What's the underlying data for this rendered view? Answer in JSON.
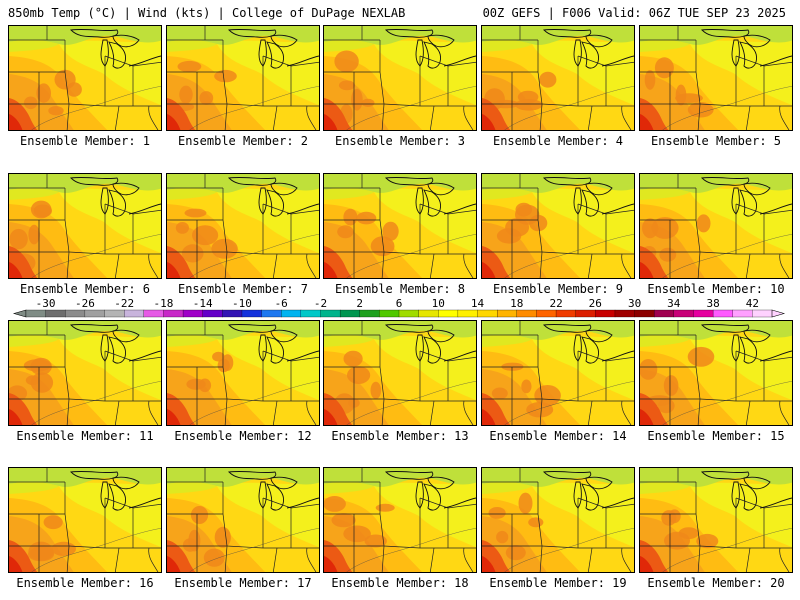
{
  "header": {
    "title_left": "850mb Temp (°C) | Wind (kts) | College of DuPage NEXLAB",
    "title_right": "00Z GEFS | F006 Valid: 06Z TUE SEP 23 2025"
  },
  "panels": [
    {
      "label": "Ensemble Member: 1"
    },
    {
      "label": "Ensemble Member: 2"
    },
    {
      "label": "Ensemble Member: 3"
    },
    {
      "label": "Ensemble Member: 4"
    },
    {
      "label": "Ensemble Member: 5"
    },
    {
      "label": "Ensemble Member: 6"
    },
    {
      "label": "Ensemble Member: 7"
    },
    {
      "label": "Ensemble Member: 8"
    },
    {
      "label": "Ensemble Member: 9"
    },
    {
      "label": "Ensemble Member: 10"
    },
    {
      "label": "Ensemble Member: 11"
    },
    {
      "label": "Ensemble Member: 12"
    },
    {
      "label": "Ensemble Member: 13"
    },
    {
      "label": "Ensemble Member: 14"
    },
    {
      "label": "Ensemble Member: 15"
    },
    {
      "label": "Ensemble Member: 16"
    },
    {
      "label": "Ensemble Member: 17"
    },
    {
      "label": "Ensemble Member: 18"
    },
    {
      "label": "Ensemble Member: 19"
    },
    {
      "label": "Ensemble Member: 20"
    }
  ],
  "colorbar": {
    "tick_labels": [
      "-30",
      "-26",
      "-22",
      "-18",
      "-14",
      "-10",
      "-6",
      "-2",
      "2",
      "6",
      "10",
      "14",
      "18",
      "22",
      "26",
      "30",
      "34",
      "38",
      "42"
    ],
    "colors": [
      "#7f8c85",
      "#6e6e6e",
      "#8c8c8c",
      "#a0a0a0",
      "#b4b4b4",
      "#c8b4dc",
      "#e65ae6",
      "#c828c8",
      "#a000c8",
      "#6400c8",
      "#3214b4",
      "#1432dc",
      "#1e78f0",
      "#00b4f0",
      "#00c8c8",
      "#00b48c",
      "#009650",
      "#1ea01e",
      "#50c800",
      "#a0dc00",
      "#e6e600",
      "#ffff00",
      "#fff000",
      "#ffd700",
      "#ffb400",
      "#ff8c00",
      "#ff6400",
      "#f03c00",
      "#dc1e00",
      "#c80000",
      "#a00000",
      "#8c0000",
      "#a00050",
      "#c80078",
      "#e600a0",
      "#ff5aff",
      "#ffa0ff",
      "#ffd2ff"
    ]
  },
  "field_colors": [
    "#bfe03a",
    "#e0e820",
    "#f4f01c",
    "#ffd814",
    "#ffbc12",
    "#f7a41a",
    "#f0881a",
    "#ec5a14",
    "#e02808"
  ]
}
